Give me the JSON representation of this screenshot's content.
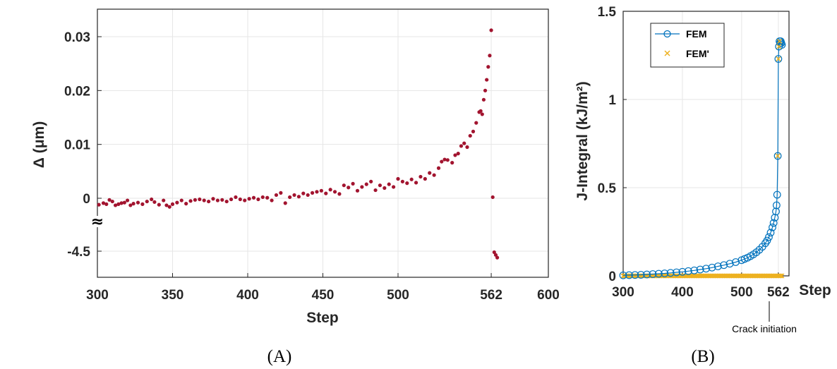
{
  "panel_labels": [
    "(A)",
    "(B)"
  ],
  "chart_data": [
    {
      "type": "scatter",
      "xlabel": "Step",
      "ylabel": "Δ (μm)",
      "x_ticks": [
        "300",
        "350",
        "400",
        "450",
        "500",
        "562",
        "600"
      ],
      "x_tick_values": [
        300,
        350,
        400,
        450,
        500,
        562,
        600
      ],
      "y_ticks": [
        "-4.5",
        "0",
        "0.01",
        "0.02",
        "0.03"
      ],
      "axis_break_symbol": "≈",
      "xlim": [
        300,
        600
      ],
      "grid": true,
      "marker_color": "#a2142f",
      "series": [
        {
          "values": [
            [
              301,
              -0.0012
            ],
            [
              304,
              -0.0009
            ],
            [
              306,
              -0.0011
            ],
            [
              308,
              -0.0003
            ],
            [
              310,
              -0.0006
            ],
            [
              312,
              -0.0013
            ],
            [
              314,
              -0.0011
            ],
            [
              316,
              -0.0009
            ],
            [
              318,
              -0.0008
            ],
            [
              320,
              -0.0004
            ],
            [
              322,
              -0.0013
            ],
            [
              324,
              -0.001
            ],
            [
              327,
              -0.0008
            ],
            [
              330,
              -0.0011
            ],
            [
              333,
              -0.0006
            ],
            [
              336,
              -0.0002
            ],
            [
              338,
              -0.0007
            ],
            [
              341,
              -0.0012
            ],
            [
              344,
              -0.0004
            ],
            [
              346,
              -0.0013
            ],
            [
              348,
              -0.0016
            ],
            [
              350,
              -0.0011
            ],
            [
              353,
              -0.0008
            ],
            [
              356,
              -0.0004
            ],
            [
              359,
              -0.001
            ],
            [
              362,
              -0.0005
            ],
            [
              365,
              -0.0003
            ],
            [
              368,
              -0.0002
            ],
            [
              371,
              -0.0004
            ],
            [
              374,
              -0.0006
            ],
            [
              377,
              -0.0001
            ],
            [
              380,
              -0.0004
            ],
            [
              383,
              -0.0003
            ],
            [
              386,
              -0.0006
            ],
            [
              389,
              -0.0002
            ],
            [
              392,
              0.0002
            ],
            [
              395,
              -0.0002
            ],
            [
              398,
              -0.0004
            ],
            [
              401,
              -0.0001
            ],
            [
              404,
              0.0001
            ],
            [
              407,
              -0.0002
            ],
            [
              410,
              0.0002
            ],
            [
              413,
              0.0001
            ],
            [
              416,
              -0.0004
            ],
            [
              419,
              0.0006
            ],
            [
              422,
              0.001
            ],
            [
              425,
              -0.0009
            ],
            [
              428,
              0.0002
            ],
            [
              431,
              0.0006
            ],
            [
              434,
              0.0003
            ],
            [
              437,
              0.0009
            ],
            [
              440,
              0.0006
            ],
            [
              443,
              0.001
            ],
            [
              446,
              0.0012
            ],
            [
              449,
              0.0014
            ],
            [
              452,
              0.0009
            ],
            [
              455,
              0.0016
            ],
            [
              458,
              0.0012
            ],
            [
              461,
              0.0008
            ],
            [
              464,
              0.0024
            ],
            [
              467,
              0.002
            ],
            [
              470,
              0.0027
            ],
            [
              473,
              0.0014
            ],
            [
              476,
              0.0021
            ],
            [
              479,
              0.0026
            ],
            [
              482,
              0.0031
            ],
            [
              485,
              0.0015
            ],
            [
              488,
              0.0024
            ],
            [
              491,
              0.0019
            ],
            [
              494,
              0.0026
            ],
            [
              497,
              0.0021
            ],
            [
              500,
              0.0036
            ],
            [
              503,
              0.0031
            ],
            [
              506,
              0.0028
            ],
            [
              509,
              0.0035
            ],
            [
              512,
              0.0029
            ],
            [
              515,
              0.004
            ],
            [
              518,
              0.0036
            ],
            [
              521,
              0.0047
            ],
            [
              524,
              0.0043
            ],
            [
              527,
              0.0056
            ],
            [
              529,
              0.0068
            ],
            [
              531,
              0.0072
            ],
            [
              533,
              0.0071
            ],
            [
              536,
              0.0066
            ],
            [
              538,
              0.008
            ],
            [
              540,
              0.0083
            ],
            [
              542,
              0.0097
            ],
            [
              544,
              0.0102
            ],
            [
              546,
              0.0095
            ],
            [
              548,
              0.0116
            ],
            [
              550,
              0.0124
            ],
            [
              552,
              0.014
            ],
            [
              554,
              0.016
            ],
            [
              555,
              0.0162
            ],
            [
              556,
              0.0156
            ],
            [
              557,
              0.0183
            ],
            [
              558,
              0.02
            ],
            [
              559,
              0.022
            ],
            [
              560,
              0.0244
            ],
            [
              561,
              0.0265
            ],
            [
              562,
              0.0312
            ],
            [
              563,
              0.0002
            ],
            [
              564,
              -4.52
            ],
            [
              565,
              -4.57
            ],
            [
              566,
              -4.62
            ]
          ]
        }
      ]
    },
    {
      "type": "line",
      "xlabel": "Step",
      "ylabel": "J-Integral (kJ/m²)",
      "x_ticks": [
        "300",
        "400",
        "500",
        "562"
      ],
      "x_tick_values": [
        300,
        400,
        500,
        562
      ],
      "y_ticks": [
        "0",
        "0.5",
        "1",
        "1.5"
      ],
      "y_tick_values": [
        0,
        0.5,
        1,
        1.5
      ],
      "xlim": [
        300,
        580
      ],
      "ylim": [
        0,
        1.5
      ],
      "grid": true,
      "legend": "top-left",
      "annotation": "Crack initiation",
      "series": [
        {
          "name": "FEM",
          "color": "#0072bd",
          "marker": "circle",
          "x": [
            300,
            310,
            320,
            330,
            340,
            350,
            360,
            370,
            380,
            390,
            400,
            410,
            420,
            430,
            440,
            450,
            460,
            470,
            480,
            490,
            500,
            505,
            510,
            515,
            520,
            525,
            530,
            535,
            540,
            543,
            546,
            549,
            552,
            554,
            556,
            558,
            559,
            560,
            561,
            562,
            563,
            564,
            565,
            566,
            567,
            568
          ],
          "y": [
            0.003,
            0.004,
            0.005,
            0.006,
            0.008,
            0.01,
            0.012,
            0.014,
            0.017,
            0.02,
            0.023,
            0.027,
            0.031,
            0.036,
            0.041,
            0.047,
            0.054,
            0.061,
            0.069,
            0.078,
            0.089,
            0.096,
            0.103,
            0.112,
            0.122,
            0.134,
            0.148,
            0.165,
            0.185,
            0.2,
            0.22,
            0.245,
            0.275,
            0.3,
            0.33,
            0.365,
            0.4,
            0.46,
            0.68,
            1.23,
            1.3,
            1.33,
            1.32,
            1.33,
            1.32,
            1.31
          ]
        },
        {
          "name": "FEM'",
          "color": "#edb120",
          "marker": "x",
          "x_range": [
            300,
            568
          ],
          "y_value": 0.0
        }
      ]
    }
  ]
}
